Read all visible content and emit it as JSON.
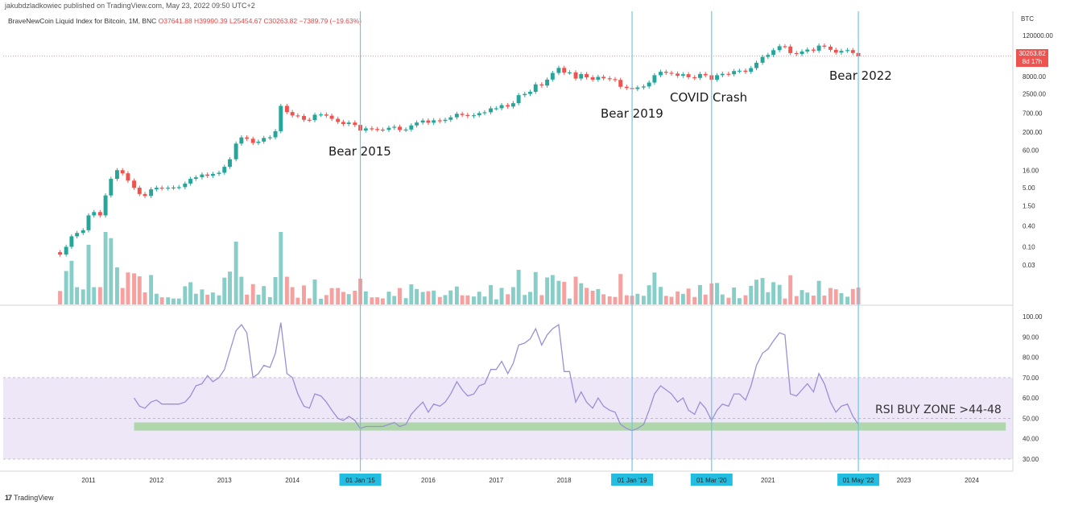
{
  "header": {
    "publisher": "jakubdzladkowiec published on TradingView.com, May 23, 2022 09:50 UTC+2",
    "symbol": "BraveNewCoin Liquid Index for Bitcoin, 1M, BNC",
    "ohlc": "O37641.88 H39990.39 L25454.67 C30263.82 −7389.79 (−19.63%)",
    "currency": "BTC",
    "last_price": "30263.82",
    "last_countdown": "8d 17h"
  },
  "footer": {
    "brand": "TradingView"
  },
  "chart_data": {
    "type": "candlestick",
    "colors": {
      "up": "#26a69a",
      "down": "#ef5350",
      "rsi": "#9b8fd6",
      "rsi_band": "#ede7f8",
      "buy_zone": "#a8d5a2",
      "event_line": "#6ec6e6"
    },
    "price_axis_ticks": [
      "120000.00",
      "8000.00",
      "2500.00",
      "700.00",
      "200.00",
      "60.00",
      "16.00",
      "5.00",
      "1.50",
      "0.40",
      "0.10",
      "0.03"
    ],
    "price_tick_values": [
      120000,
      8000,
      2500,
      700,
      200,
      60,
      16,
      5,
      1.5,
      0.4,
      0.1,
      0.03
    ],
    "price_scale": "log",
    "candles": [
      [
        2010.58,
        0.07,
        0.06
      ],
      [
        2010.67,
        0.06,
        0.1
      ],
      [
        2010.75,
        0.1,
        0.2
      ],
      [
        2010.83,
        0.2,
        0.25
      ],
      [
        2010.92,
        0.25,
        0.3
      ],
      [
        2011.0,
        0.3,
        0.8
      ],
      [
        2011.08,
        0.8,
        1
      ],
      [
        2011.17,
        1,
        0.8
      ],
      [
        2011.25,
        0.8,
        3
      ],
      [
        2011.33,
        3,
        9
      ],
      [
        2011.42,
        9,
        16
      ],
      [
        2011.5,
        16,
        13
      ],
      [
        2011.58,
        13,
        8
      ],
      [
        2011.67,
        8,
        5
      ],
      [
        2011.75,
        5,
        3.3
      ],
      [
        2011.83,
        3.3,
        2.9
      ],
      [
        2011.92,
        2.9,
        4.5
      ],
      [
        2012.0,
        4.5,
        5
      ],
      [
        2012.08,
        5,
        4.8
      ],
      [
        2012.17,
        4.8,
        5
      ],
      [
        2012.25,
        5,
        5.1
      ],
      [
        2012.33,
        5.1,
        5.2
      ],
      [
        2012.42,
        5.2,
        6.6
      ],
      [
        2012.5,
        6.6,
        9
      ],
      [
        2012.58,
        9,
        10
      ],
      [
        2012.67,
        10,
        12
      ],
      [
        2012.75,
        12,
        11
      ],
      [
        2012.83,
        11,
        12.5
      ],
      [
        2012.92,
        12.5,
        13.5
      ],
      [
        2013.0,
        13.5,
        20
      ],
      [
        2013.08,
        20,
        33
      ],
      [
        2013.17,
        33,
        93
      ],
      [
        2013.25,
        93,
        140
      ],
      [
        2013.33,
        140,
        128
      ],
      [
        2013.42,
        128,
        97
      ],
      [
        2013.5,
        97,
        106
      ],
      [
        2013.58,
        106,
        135
      ],
      [
        2013.67,
        135,
        141
      ],
      [
        2013.75,
        141,
        211
      ],
      [
        2013.83,
        211,
        1130
      ],
      [
        2013.92,
        1130,
        750
      ],
      [
        2014.0,
        750,
        600
      ],
      [
        2014.08,
        600,
        580
      ],
      [
        2014.17,
        580,
        450
      ],
      [
        2014.25,
        450,
        440
      ],
      [
        2014.33,
        440,
        630
      ],
      [
        2014.42,
        630,
        640
      ],
      [
        2014.5,
        640,
        590
      ],
      [
        2014.58,
        590,
        480
      ],
      [
        2014.67,
        480,
        390
      ],
      [
        2014.75,
        390,
        340
      ],
      [
        2014.83,
        340,
        375
      ],
      [
        2014.92,
        375,
        320
      ],
      [
        2015.0,
        320,
        220
      ],
      [
        2015.08,
        220,
        255
      ],
      [
        2015.17,
        255,
        245
      ],
      [
        2015.25,
        245,
        235
      ],
      [
        2015.33,
        235,
        230
      ],
      [
        2015.42,
        230,
        265
      ],
      [
        2015.5,
        265,
        283
      ],
      [
        2015.58,
        283,
        230
      ],
      [
        2015.67,
        230,
        236
      ],
      [
        2015.75,
        236,
        310
      ],
      [
        2015.83,
        310,
        375
      ],
      [
        2015.92,
        375,
        430
      ],
      [
        2016.0,
        430,
        370
      ],
      [
        2016.08,
        370,
        435
      ],
      [
        2016.17,
        435,
        415
      ],
      [
        2016.25,
        415,
        450
      ],
      [
        2016.33,
        450,
        530
      ],
      [
        2016.42,
        530,
        670
      ],
      [
        2016.5,
        670,
        620
      ],
      [
        2016.58,
        620,
        575
      ],
      [
        2016.67,
        575,
        608
      ],
      [
        2016.75,
        608,
        700
      ],
      [
        2016.83,
        700,
        740
      ],
      [
        2016.92,
        740,
        960
      ],
      [
        2017.0,
        960,
        965
      ],
      [
        2017.08,
        965,
        1190
      ],
      [
        2017.17,
        1190,
        1080
      ],
      [
        2017.25,
        1080,
        1350
      ],
      [
        2017.33,
        1350,
        2300
      ],
      [
        2017.42,
        2300,
        2500
      ],
      [
        2017.5,
        2500,
        2870
      ],
      [
        2017.58,
        2870,
        4700
      ],
      [
        2017.67,
        4700,
        4340
      ],
      [
        2017.75,
        4340,
        6450
      ],
      [
        2017.83,
        6450,
        10000
      ],
      [
        2017.92,
        10000,
        14000
      ],
      [
        2018.0,
        14000,
        10200
      ],
      [
        2018.08,
        10200,
        10400
      ],
      [
        2018.17,
        10400,
        6900
      ],
      [
        2018.25,
        6900,
        9250
      ],
      [
        2018.33,
        9250,
        7500
      ],
      [
        2018.42,
        7500,
        6400
      ],
      [
        2018.5,
        6400,
        7730
      ],
      [
        2018.58,
        7730,
        7030
      ],
      [
        2018.67,
        7030,
        6630
      ],
      [
        2018.75,
        6630,
        6320
      ],
      [
        2018.83,
        6320,
        4000
      ],
      [
        2018.92,
        4000,
        3700
      ],
      [
        2019.0,
        3700,
        3450
      ],
      [
        2019.08,
        3450,
        3830
      ],
      [
        2019.17,
        3830,
        4100
      ],
      [
        2019.25,
        4100,
        5300
      ],
      [
        2019.33,
        5300,
        8600
      ],
      [
        2019.42,
        8600,
        10800
      ],
      [
        2019.5,
        10800,
        10100
      ],
      [
        2019.58,
        10100,
        9600
      ],
      [
        2019.67,
        9600,
        8300
      ],
      [
        2019.75,
        8300,
        9200
      ],
      [
        2019.83,
        9200,
        7550
      ],
      [
        2019.92,
        7550,
        7200
      ],
      [
        2020.0,
        7200,
        9350
      ],
      [
        2020.08,
        9350,
        8550
      ],
      [
        2020.17,
        8550,
        6400
      ],
      [
        2020.25,
        6400,
        8620
      ],
      [
        2020.33,
        8620,
        9450
      ],
      [
        2020.42,
        9450,
        9140
      ],
      [
        2020.5,
        9140,
        11350
      ],
      [
        2020.58,
        11350,
        11650
      ],
      [
        2020.67,
        11650,
        10780
      ],
      [
        2020.75,
        10780,
        13800
      ],
      [
        2020.83,
        13800,
        19700
      ],
      [
        2020.92,
        19700,
        28990
      ],
      [
        2021.0,
        28990,
        33100
      ],
      [
        2021.08,
        33100,
        45200
      ],
      [
        2021.17,
        45200,
        58800
      ],
      [
        2021.25,
        58800,
        57700
      ],
      [
        2021.33,
        57700,
        37300
      ],
      [
        2021.42,
        37300,
        35000
      ],
      [
        2021.5,
        35000,
        41500
      ],
      [
        2021.58,
        41500,
        47100
      ],
      [
        2021.67,
        47100,
        43800
      ],
      [
        2021.75,
        43800,
        61300
      ],
      [
        2021.83,
        61300,
        57000
      ],
      [
        2021.92,
        57000,
        46300
      ],
      [
        2022.0,
        46300,
        38500
      ],
      [
        2022.08,
        38500,
        43200
      ],
      [
        2022.17,
        43200,
        45500
      ],
      [
        2022.25,
        45500,
        37600
      ],
      [
        2022.33,
        37600,
        30263.82
      ]
    ],
    "events": [
      {
        "label": "Bear 2015",
        "x": 2015.0,
        "date_tag": "01 Jan '15"
      },
      {
        "label": "Bear 2019",
        "x": 2019.0,
        "date_tag": "01 Jan '19"
      },
      {
        "label": "COVID Crash",
        "x": 2020.17,
        "date_tag": "01 Mar '20"
      },
      {
        "label": "Bear 2022",
        "x": 2022.33,
        "date_tag": "01 May '22"
      }
    ],
    "x_ticks": [
      2011,
      2012,
      2013,
      2014,
      2016,
      2017,
      2018,
      2021,
      2023,
      2024
    ],
    "x_tick_labels": [
      "2011",
      "2012",
      "2013",
      "2014",
      "2016",
      "2017",
      "2018",
      "2021",
      "2023",
      "2024"
    ],
    "x_range": [
      2010.0,
      2024.75
    ],
    "rsi": {
      "axis_ticks": [
        "100.00",
        "90.00",
        "80.00",
        "70.00",
        "60.00",
        "50.00",
        "40.00",
        "30.00"
      ],
      "axis_values": [
        100,
        90,
        80,
        70,
        60,
        50,
        40,
        30
      ],
      "band": [
        30,
        70
      ],
      "buy_zone": {
        "label": "RSI BUY ZONE >44-48",
        "range": [
          44,
          48
        ],
        "x_range": [
          2011.67,
          2024.5
        ]
      },
      "points": [
        [
          2011.67,
          60
        ],
        [
          2011.75,
          56
        ],
        [
          2011.83,
          55
        ],
        [
          2011.92,
          58
        ],
        [
          2012.0,
          59
        ],
        [
          2012.08,
          57
        ],
        [
          2012.17,
          57
        ],
        [
          2012.25,
          57
        ],
        [
          2012.33,
          57
        ],
        [
          2012.42,
          58
        ],
        [
          2012.5,
          61
        ],
        [
          2012.58,
          66
        ],
        [
          2012.67,
          67
        ],
        [
          2012.75,
          71
        ],
        [
          2012.83,
          68
        ],
        [
          2012.92,
          70
        ],
        [
          2013.0,
          74
        ],
        [
          2013.08,
          83
        ],
        [
          2013.17,
          93
        ],
        [
          2013.25,
          96
        ],
        [
          2013.33,
          92
        ],
        [
          2013.42,
          70
        ],
        [
          2013.5,
          72
        ],
        [
          2013.58,
          76
        ],
        [
          2013.67,
          75
        ],
        [
          2013.75,
          82
        ],
        [
          2013.83,
          97
        ],
        [
          2013.92,
          72
        ],
        [
          2014.0,
          70
        ],
        [
          2014.08,
          62
        ],
        [
          2014.17,
          56
        ],
        [
          2014.25,
          55
        ],
        [
          2014.33,
          62
        ],
        [
          2014.42,
          61
        ],
        [
          2014.5,
          58
        ],
        [
          2014.58,
          54
        ],
        [
          2014.67,
          50
        ],
        [
          2014.75,
          49
        ],
        [
          2014.83,
          51
        ],
        [
          2014.92,
          49
        ],
        [
          2015.0,
          45
        ],
        [
          2015.08,
          46
        ],
        [
          2015.17,
          46
        ],
        [
          2015.25,
          46
        ],
        [
          2015.33,
          46
        ],
        [
          2015.42,
          47
        ],
        [
          2015.5,
          48
        ],
        [
          2015.58,
          46
        ],
        [
          2015.67,
          47
        ],
        [
          2015.75,
          52
        ],
        [
          2015.83,
          55
        ],
        [
          2015.92,
          58
        ],
        [
          2016.0,
          53
        ],
        [
          2016.08,
          57
        ],
        [
          2016.17,
          56
        ],
        [
          2016.25,
          58
        ],
        [
          2016.33,
          62
        ],
        [
          2016.42,
          68
        ],
        [
          2016.5,
          64
        ],
        [
          2016.58,
          61
        ],
        [
          2016.67,
          62
        ],
        [
          2016.75,
          66
        ],
        [
          2016.83,
          67
        ],
        [
          2016.92,
          74
        ],
        [
          2017.0,
          74
        ],
        [
          2017.08,
          78
        ],
        [
          2017.17,
          72
        ],
        [
          2017.25,
          77
        ],
        [
          2017.33,
          86
        ],
        [
          2017.42,
          87
        ],
        [
          2017.5,
          89
        ],
        [
          2017.58,
          94
        ],
        [
          2017.67,
          86
        ],
        [
          2017.75,
          91
        ],
        [
          2017.83,
          94
        ],
        [
          2017.92,
          96
        ],
        [
          2018.0,
          73
        ],
        [
          2018.08,
          73
        ],
        [
          2018.17,
          58
        ],
        [
          2018.25,
          63
        ],
        [
          2018.33,
          58
        ],
        [
          2018.42,
          55
        ],
        [
          2018.5,
          60
        ],
        [
          2018.58,
          56
        ],
        [
          2018.67,
          54
        ],
        [
          2018.75,
          53
        ],
        [
          2018.83,
          47
        ],
        [
          2018.92,
          45
        ],
        [
          2019.0,
          44
        ],
        [
          2019.08,
          45
        ],
        [
          2019.17,
          47
        ],
        [
          2019.25,
          54
        ],
        [
          2019.33,
          62
        ],
        [
          2019.42,
          66
        ],
        [
          2019.5,
          64
        ],
        [
          2019.58,
          62
        ],
        [
          2019.67,
          58
        ],
        [
          2019.75,
          60
        ],
        [
          2019.83,
          54
        ],
        [
          2019.92,
          52
        ],
        [
          2020.0,
          58
        ],
        [
          2020.08,
          55
        ],
        [
          2020.17,
          49
        ],
        [
          2020.25,
          54
        ],
        [
          2020.33,
          57
        ],
        [
          2020.42,
          56
        ],
        [
          2020.5,
          62
        ],
        [
          2020.58,
          62
        ],
        [
          2020.67,
          59
        ],
        [
          2020.75,
          66
        ],
        [
          2020.83,
          76
        ],
        [
          2020.92,
          82
        ],
        [
          2021.0,
          84
        ],
        [
          2021.08,
          88
        ],
        [
          2021.17,
          92
        ],
        [
          2021.25,
          91
        ],
        [
          2021.33,
          62
        ],
        [
          2021.42,
          61
        ],
        [
          2021.5,
          64
        ],
        [
          2021.58,
          67
        ],
        [
          2021.67,
          63
        ],
        [
          2021.75,
          72
        ],
        [
          2021.83,
          67
        ],
        [
          2021.92,
          58
        ],
        [
          2022.0,
          53
        ],
        [
          2022.08,
          56
        ],
        [
          2022.17,
          57
        ],
        [
          2022.25,
          51
        ],
        [
          2022.33,
          47
        ]
      ]
    }
  }
}
